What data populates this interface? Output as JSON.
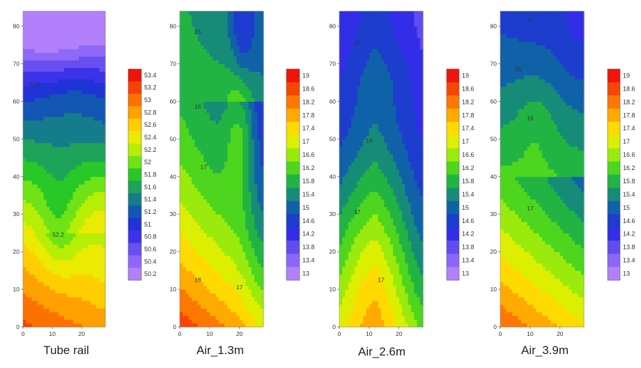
{
  "chart_data": [
    {
      "type": "heatmap",
      "title": "Tube rail",
      "xlim": [
        0,
        28
      ],
      "ylim": [
        0,
        84
      ],
      "x_ticks": [
        0,
        10,
        20
      ],
      "y_ticks": [
        0,
        10,
        20,
        30,
        40,
        50,
        60,
        70,
        80
      ],
      "colorbar": {
        "levels": [
          50.2,
          50.4,
          50.6,
          50.8,
          51,
          51.2,
          51.4,
          51.6,
          51.8,
          52,
          52.2,
          52.4,
          52.6,
          52.8,
          53,
          53.2,
          53.4
        ],
        "tick_labels": [
          "53.4",
          "53.2",
          "53",
          "52.8",
          "52.6",
          "52.4",
          "52.2",
          "52",
          "51.8",
          "51.6",
          "51.4",
          "51.2",
          "51",
          "50.8",
          "50.6",
          "50.4",
          "50.2"
        ]
      },
      "contour_labels": [
        "51.2",
        "52.2"
      ],
      "range": [
        50.2,
        53.4
      ]
    },
    {
      "type": "heatmap",
      "title": "Air_1.3m",
      "xlim": [
        0,
        28
      ],
      "ylim": [
        0,
        84
      ],
      "x_ticks": [
        0,
        10,
        20
      ],
      "y_ticks": [
        0,
        10,
        20,
        30,
        40,
        50,
        60,
        70,
        80
      ],
      "colorbar": {
        "levels": [
          13,
          13.4,
          13.8,
          14.2,
          14.6,
          15,
          15.4,
          15.8,
          16.2,
          16.6,
          17,
          17.4,
          17.8,
          18.2,
          18.6,
          19
        ],
        "tick_labels": [
          "19",
          "18.6",
          "18.2",
          "17.8",
          "17.4",
          "17",
          "16.6",
          "16.2",
          "15.8",
          "15.4",
          "15",
          "14.6",
          "14.2",
          "13.8",
          "13.4",
          "13"
        ]
      },
      "contour_labels": [
        "15",
        "16",
        "17",
        "18",
        "17"
      ],
      "range": [
        13,
        19
      ]
    },
    {
      "type": "heatmap",
      "title": "Air_2.6m",
      "xlim": [
        0,
        28
      ],
      "ylim": [
        0,
        84
      ],
      "x_ticks": [
        0,
        10,
        20
      ],
      "y_ticks": [
        0,
        10,
        20,
        30,
        40,
        50,
        60,
        70,
        80
      ],
      "colorbar": {
        "levels": [
          13,
          13.4,
          13.8,
          14.2,
          14.6,
          15,
          15.4,
          15.8,
          16.2,
          16.6,
          17,
          17.4,
          17.8,
          18.2,
          18.6,
          19
        ],
        "tick_labels": [
          "19",
          "18.6",
          "18.2",
          "17.8",
          "17.4",
          "17",
          "16.6",
          "16.2",
          "15.8",
          "15.4",
          "15",
          "14.6",
          "14.2",
          "13.8",
          "13.4",
          "13"
        ]
      },
      "contour_labels": [
        "15",
        "16",
        "17",
        "17"
      ],
      "range": [
        13,
        19
      ]
    },
    {
      "type": "heatmap",
      "title": "Air_3.9m",
      "xlim": [
        0,
        28
      ],
      "ylim": [
        0,
        84
      ],
      "x_ticks": [
        0,
        10,
        20
      ],
      "y_ticks": [
        0,
        10,
        20,
        30,
        40,
        50,
        60,
        70,
        80
      ],
      "colorbar": {
        "levels": [
          13,
          13.4,
          13.8,
          14.2,
          14.6,
          15,
          15.4,
          15.8,
          16.2,
          16.6,
          17,
          17.4,
          17.8,
          18.2,
          18.6,
          19
        ],
        "tick_labels": [
          "19",
          "18.6",
          "18.2",
          "17.8",
          "17.4",
          "17",
          "16.6",
          "16.2",
          "15.8",
          "15.4",
          "15",
          "14.6",
          "14.2",
          "13.8",
          "13.4",
          "13"
        ]
      },
      "contour_labels": [
        "14",
        "15",
        "16",
        "17"
      ],
      "range": [
        13,
        19
      ]
    }
  ]
}
